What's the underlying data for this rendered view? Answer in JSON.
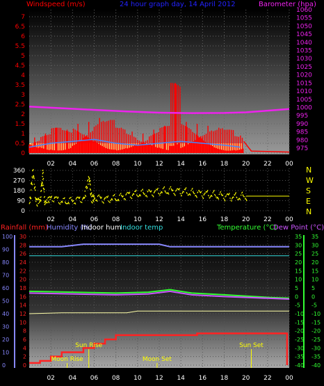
{
  "header": {
    "title": "24 hour graph day, 14 April 2012",
    "left_label": "Windspeed (m/s)",
    "right_label": "Barometer (hpa)"
  },
  "colors": {
    "wind": "#ff0000",
    "gust": "#ffff88",
    "barometer": "#ee22ee",
    "avg_wind": "#4488ff",
    "direction": "#ffff00",
    "rain": "#ff2222",
    "humidity": "#8888ff",
    "indoor_hum": "#ffffff",
    "indoor_temp": "#33dddd",
    "temperature": "#33ff33",
    "dew_point": "#cc55ff",
    "annotation": "#ffff00"
  },
  "chart_data": [
    {
      "type": "bar",
      "name": "wind-barometer",
      "x_ticks": [
        "02",
        "04",
        "06",
        "08",
        "10",
        "12",
        "14",
        "16",
        "18",
        "20",
        "22",
        "00"
      ],
      "left_axis": {
        "label": "Windspeed (m/s)",
        "ticks": [
          "0",
          "0.5",
          "1",
          "1.5",
          "2",
          "2.5",
          "3",
          "3.5",
          "4",
          "4.5",
          "5",
          "5.5",
          "6",
          "6.5",
          "7"
        ],
        "range": [
          0,
          7
        ]
      },
      "right_axis": {
        "label": "Barometer (hpa)",
        "ticks": [
          "975",
          "980",
          "985",
          "990",
          "995",
          "1000",
          "1005",
          "1010",
          "1015",
          "1020",
          "1025",
          "1030",
          "1035",
          "1040",
          "1045",
          "1050",
          "1055",
          "1060"
        ],
        "range": [
          972,
          1060
        ]
      },
      "barometer_hpa": [
        {
          "x": 0,
          "y": 1000.5
        },
        {
          "x": 3,
          "y": 999.5
        },
        {
          "x": 6,
          "y": 998.5
        },
        {
          "x": 9,
          "y": 997.5
        },
        {
          "x": 12,
          "y": 996.8
        },
        {
          "x": 15,
          "y": 996.5
        },
        {
          "x": 18,
          "y": 996.6
        },
        {
          "x": 20,
          "y": 997
        },
        {
          "x": 22,
          "y": 998
        },
        {
          "x": 24,
          "y": 999
        }
      ],
      "wind_max_m_s": [
        {
          "x": 0,
          "y": 0.8
        },
        {
          "x": 1,
          "y": 1.0
        },
        {
          "x": 2,
          "y": 1.3
        },
        {
          "x": 3,
          "y": 1.2
        },
        {
          "x": 4,
          "y": 1.5
        },
        {
          "x": 5,
          "y": 1.6
        },
        {
          "x": 6,
          "y": 1.8
        },
        {
          "x": 7,
          "y": 1.7
        },
        {
          "x": 8,
          "y": 1.3
        },
        {
          "x": 9,
          "y": 1.1
        },
        {
          "x": 10,
          "y": 1.0
        },
        {
          "x": 11,
          "y": 1.2
        },
        {
          "x": 12,
          "y": 1.4
        },
        {
          "x": 13,
          "y": 3.6
        },
        {
          "x": 14,
          "y": 1.6
        },
        {
          "x": 15,
          "y": 1.5
        },
        {
          "x": 16,
          "y": 1.4
        },
        {
          "x": 17,
          "y": 1.3
        },
        {
          "x": 18,
          "y": 1.2
        },
        {
          "x": 19,
          "y": 0.9
        },
        {
          "x": 20,
          "y": 0.2
        },
        {
          "x": 21,
          "y": 0
        },
        {
          "x": 22,
          "y": 0
        },
        {
          "x": 23,
          "y": 0
        }
      ],
      "wind_avg_m_s": [
        {
          "x": 0,
          "y": 0.3
        },
        {
          "x": 2,
          "y": 0.5
        },
        {
          "x": 4,
          "y": 0.6
        },
        {
          "x": 6,
          "y": 0.7
        },
        {
          "x": 8,
          "y": 0.5
        },
        {
          "x": 10,
          "y": 0.4
        },
        {
          "x": 12,
          "y": 0.5
        },
        {
          "x": 14,
          "y": 0.6
        },
        {
          "x": 16,
          "y": 0.5
        },
        {
          "x": 18,
          "y": 0.4
        },
        {
          "x": 19.5,
          "y": 0.3
        }
      ],
      "gust_fill_m_s": 0.5
    },
    {
      "type": "line",
      "name": "wind-direction",
      "left_ticks": [
        "0",
        "90",
        "180",
        "270",
        "360"
      ],
      "range": [
        0,
        360
      ],
      "right_labels": [
        "N",
        "W",
        "S",
        "E",
        "N"
      ],
      "direction_deg": [
        {
          "x": 0,
          "y": 60
        },
        {
          "x": 0.3,
          "y": 360
        },
        {
          "x": 0.6,
          "y": 80
        },
        {
          "x": 1,
          "y": 100
        },
        {
          "x": 1.2,
          "y": 330
        },
        {
          "x": 1.4,
          "y": 70
        },
        {
          "x": 2,
          "y": 120
        },
        {
          "x": 3,
          "y": 80
        },
        {
          "x": 4,
          "y": 90
        },
        {
          "x": 5,
          "y": 110
        },
        {
          "x": 5.5,
          "y": 300
        },
        {
          "x": 5.7,
          "y": 100
        },
        {
          "x": 6,
          "y": 120
        },
        {
          "x": 7,
          "y": 100
        },
        {
          "x": 8,
          "y": 110
        },
        {
          "x": 9,
          "y": 140
        },
        {
          "x": 10,
          "y": 150
        },
        {
          "x": 11,
          "y": 160
        },
        {
          "x": 12,
          "y": 170
        },
        {
          "x": 13,
          "y": 180
        },
        {
          "x": 14,
          "y": 170
        },
        {
          "x": 15,
          "y": 160
        },
        {
          "x": 16,
          "y": 150
        },
        {
          "x": 17,
          "y": 140
        },
        {
          "x": 18,
          "y": 130
        },
        {
          "x": 19,
          "y": 120
        },
        {
          "x": 20,
          "y": 130
        },
        {
          "x": 24,
          "y": 130
        }
      ]
    },
    {
      "type": "line",
      "name": "temperature-humidity-rain",
      "legend": [
        "Rainfall (mm)",
        "Humidity (%)",
        "Indoor hum",
        "Indoor temp",
        "Temperature (°C)",
        "Dew Point (°C)"
      ],
      "humidity_ticks": [
        "0",
        "10",
        "20",
        "30",
        "40",
        "50",
        "60",
        "70",
        "80",
        "90",
        "100"
      ],
      "rain_ticks": [
        "0",
        "2",
        "4",
        "6",
        "8",
        "10",
        "12",
        "14",
        "16",
        "18",
        "20",
        "22",
        "24",
        "26",
        "28",
        "30"
      ],
      "temp_ticks": [
        "35",
        "30",
        "25",
        "20",
        "15",
        "10",
        "5",
        "0",
        "-5",
        "-10",
        "-15",
        "-20",
        "-25",
        "-30",
        "-35",
        "-40"
      ],
      "temp_range": [
        -40,
        35
      ],
      "humidity_pct": [
        {
          "x": 0,
          "y": 92
        },
        {
          "x": 3,
          "y": 92
        },
        {
          "x": 5,
          "y": 94
        },
        {
          "x": 8,
          "y": 94
        },
        {
          "x": 12,
          "y": 94
        },
        {
          "x": 13,
          "y": 92
        },
        {
          "x": 16,
          "y": 92
        },
        {
          "x": 24,
          "y": 92
        }
      ],
      "indoor_hum_pct": [
        {
          "x": 0,
          "y": 85
        },
        {
          "x": 24,
          "y": 85
        }
      ],
      "indoor_temp_c": [
        {
          "x": 0,
          "y": 28
        },
        {
          "x": 24,
          "y": 28
        }
      ],
      "temperature_c": [
        {
          "x": 0,
          "y": 3
        },
        {
          "x": 4,
          "y": 2.5
        },
        {
          "x": 8,
          "y": 2
        },
        {
          "x": 11,
          "y": 2.5
        },
        {
          "x": 13,
          "y": 4
        },
        {
          "x": 15,
          "y": 2
        },
        {
          "x": 18,
          "y": 1
        },
        {
          "x": 22,
          "y": -0.5
        },
        {
          "x": 24,
          "y": -1
        }
      ],
      "dew_point_c": [
        {
          "x": 0,
          "y": 2
        },
        {
          "x": 4,
          "y": 1.5
        },
        {
          "x": 8,
          "y": 1
        },
        {
          "x": 11,
          "y": 1.5
        },
        {
          "x": 13,
          "y": 3
        },
        {
          "x": 15,
          "y": 1
        },
        {
          "x": 18,
          "y": 0
        },
        {
          "x": 22,
          "y": -1
        },
        {
          "x": 24,
          "y": -1.5
        }
      ],
      "temp_const_c": [
        {
          "x": 0,
          "y": -10
        },
        {
          "x": 3,
          "y": -9.5
        },
        {
          "x": 9,
          "y": -9.5
        },
        {
          "x": 10,
          "y": -8.5
        },
        {
          "x": 24,
          "y": -8.5
        }
      ],
      "rain_mm": [
        {
          "x": 0,
          "y": 0.5
        },
        {
          "x": 1,
          "y": 1
        },
        {
          "x": 2,
          "y": 2
        },
        {
          "x": 3,
          "y": 3
        },
        {
          "x": 5,
          "y": 4
        },
        {
          "x": 6,
          "y": 5
        },
        {
          "x": 7,
          "y": 6
        },
        {
          "x": 8,
          "y": 7
        },
        {
          "x": 9,
          "y": 7
        },
        {
          "x": 15,
          "y": 7
        },
        {
          "x": 15.5,
          "y": 7.4
        },
        {
          "x": 23.7,
          "y": 7.4
        },
        {
          "x": 23.8,
          "y": 0
        }
      ],
      "events": [
        {
          "label": "Sun Rise",
          "x": 5.5,
          "row": "upper"
        },
        {
          "label": "Moon Rise",
          "x": 3.5,
          "row": "lower"
        },
        {
          "label": "Moon Set",
          "x": 11.8,
          "row": "lower"
        },
        {
          "label": "Sun Set",
          "x": 20.5,
          "row": "upper"
        }
      ]
    }
  ],
  "bottom_ticks": [
    "02",
    "04",
    "06",
    "08",
    "10",
    "12",
    "14",
    "16",
    "18",
    "20",
    "22",
    "00"
  ],
  "middle_ticks": [
    "02",
    "04",
    "06",
    "08",
    "10",
    "12",
    "14",
    "16",
    "18",
    "20",
    "22",
    "00"
  ]
}
